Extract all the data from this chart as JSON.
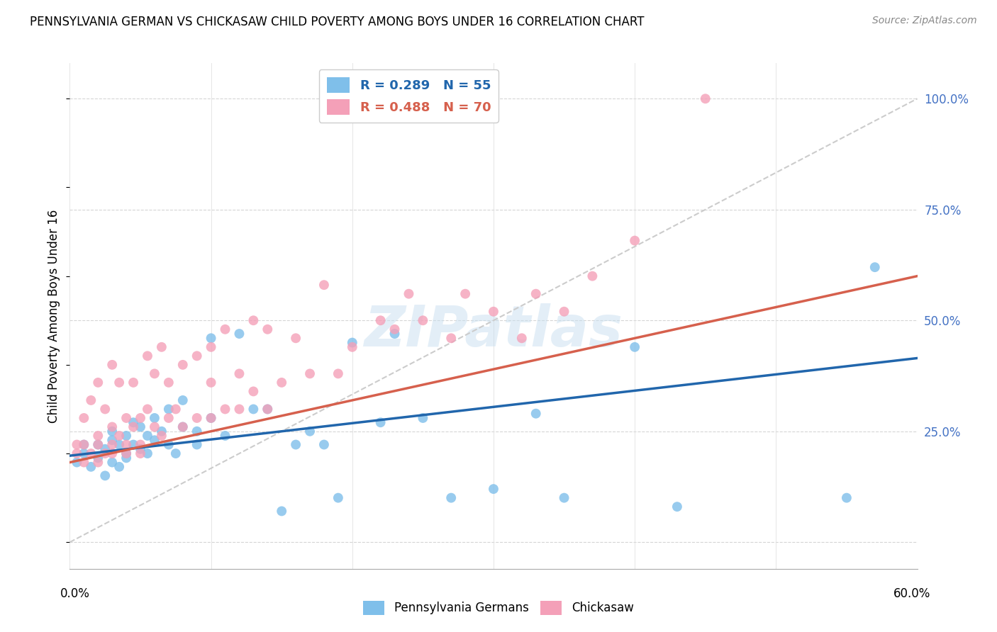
{
  "title": "PENNSYLVANIA GERMAN VS CHICKASAW CHILD POVERTY AMONG BOYS UNDER 16 CORRELATION CHART",
  "source": "Source: ZipAtlas.com",
  "ylabel": "Child Poverty Among Boys Under 16",
  "y_ticks": [
    0.0,
    0.25,
    0.5,
    0.75,
    1.0
  ],
  "y_tick_labels": [
    "",
    "25.0%",
    "50.0%",
    "75.0%",
    "100.0%"
  ],
  "xmin": 0.0,
  "xmax": 0.6,
  "ymin": -0.06,
  "ymax": 1.08,
  "blue_R": 0.289,
  "blue_N": 55,
  "pink_R": 0.488,
  "pink_N": 70,
  "blue_color": "#7fbfea",
  "pink_color": "#f4a0b8",
  "blue_line_color": "#2166ac",
  "pink_line_color": "#d6604d",
  "diagonal_color": "#cccccc",
  "legend_label_blue": "Pennsylvania Germans",
  "legend_label_pink": "Chickasaw",
  "watermark_text": "ZIPatlas",
  "blue_scatter_x": [
    0.005,
    0.01,
    0.01,
    0.015,
    0.02,
    0.02,
    0.025,
    0.025,
    0.03,
    0.03,
    0.03,
    0.035,
    0.035,
    0.04,
    0.04,
    0.04,
    0.045,
    0.045,
    0.05,
    0.05,
    0.055,
    0.055,
    0.06,
    0.06,
    0.065,
    0.07,
    0.07,
    0.075,
    0.08,
    0.08,
    0.09,
    0.09,
    0.1,
    0.1,
    0.11,
    0.12,
    0.13,
    0.14,
    0.15,
    0.16,
    0.17,
    0.18,
    0.19,
    0.2,
    0.22,
    0.23,
    0.25,
    0.27,
    0.3,
    0.33,
    0.35,
    0.4,
    0.43,
    0.55,
    0.57
  ],
  "blue_scatter_y": [
    0.18,
    0.2,
    0.22,
    0.17,
    0.19,
    0.22,
    0.15,
    0.21,
    0.18,
    0.23,
    0.25,
    0.17,
    0.22,
    0.2,
    0.24,
    0.19,
    0.22,
    0.27,
    0.21,
    0.26,
    0.2,
    0.24,
    0.23,
    0.28,
    0.25,
    0.22,
    0.3,
    0.2,
    0.26,
    0.32,
    0.25,
    0.22,
    0.28,
    0.46,
    0.24,
    0.47,
    0.3,
    0.3,
    0.07,
    0.22,
    0.25,
    0.22,
    0.1,
    0.45,
    0.27,
    0.47,
    0.28,
    0.1,
    0.12,
    0.29,
    0.1,
    0.44,
    0.08,
    0.1,
    0.62
  ],
  "pink_scatter_x": [
    0.005,
    0.005,
    0.01,
    0.01,
    0.01,
    0.015,
    0.015,
    0.02,
    0.02,
    0.02,
    0.02,
    0.025,
    0.025,
    0.03,
    0.03,
    0.03,
    0.03,
    0.035,
    0.035,
    0.04,
    0.04,
    0.04,
    0.045,
    0.045,
    0.05,
    0.05,
    0.05,
    0.055,
    0.055,
    0.06,
    0.06,
    0.065,
    0.065,
    0.07,
    0.07,
    0.075,
    0.08,
    0.08,
    0.09,
    0.09,
    0.1,
    0.1,
    0.1,
    0.11,
    0.11,
    0.12,
    0.12,
    0.13,
    0.13,
    0.14,
    0.14,
    0.15,
    0.16,
    0.17,
    0.18,
    0.19,
    0.2,
    0.22,
    0.23,
    0.24,
    0.25,
    0.27,
    0.28,
    0.3,
    0.32,
    0.33,
    0.35,
    0.37,
    0.4,
    0.45
  ],
  "pink_scatter_y": [
    0.2,
    0.22,
    0.18,
    0.22,
    0.28,
    0.2,
    0.32,
    0.18,
    0.24,
    0.22,
    0.36,
    0.2,
    0.3,
    0.22,
    0.26,
    0.2,
    0.4,
    0.24,
    0.36,
    0.22,
    0.28,
    0.2,
    0.26,
    0.36,
    0.2,
    0.28,
    0.22,
    0.3,
    0.42,
    0.26,
    0.38,
    0.24,
    0.44,
    0.28,
    0.36,
    0.3,
    0.26,
    0.4,
    0.28,
    0.42,
    0.28,
    0.36,
    0.44,
    0.3,
    0.48,
    0.3,
    0.38,
    0.34,
    0.5,
    0.3,
    0.48,
    0.36,
    0.46,
    0.38,
    0.58,
    0.38,
    0.44,
    0.5,
    0.48,
    0.56,
    0.5,
    0.46,
    0.56,
    0.52,
    0.46,
    0.56,
    0.52,
    0.6,
    0.68,
    1.0
  ],
  "blue_line_x": [
    0.0,
    0.6
  ],
  "blue_line_y": [
    0.195,
    0.415
  ],
  "pink_line_x": [
    0.0,
    0.6
  ],
  "pink_line_y": [
    0.18,
    0.6
  ]
}
